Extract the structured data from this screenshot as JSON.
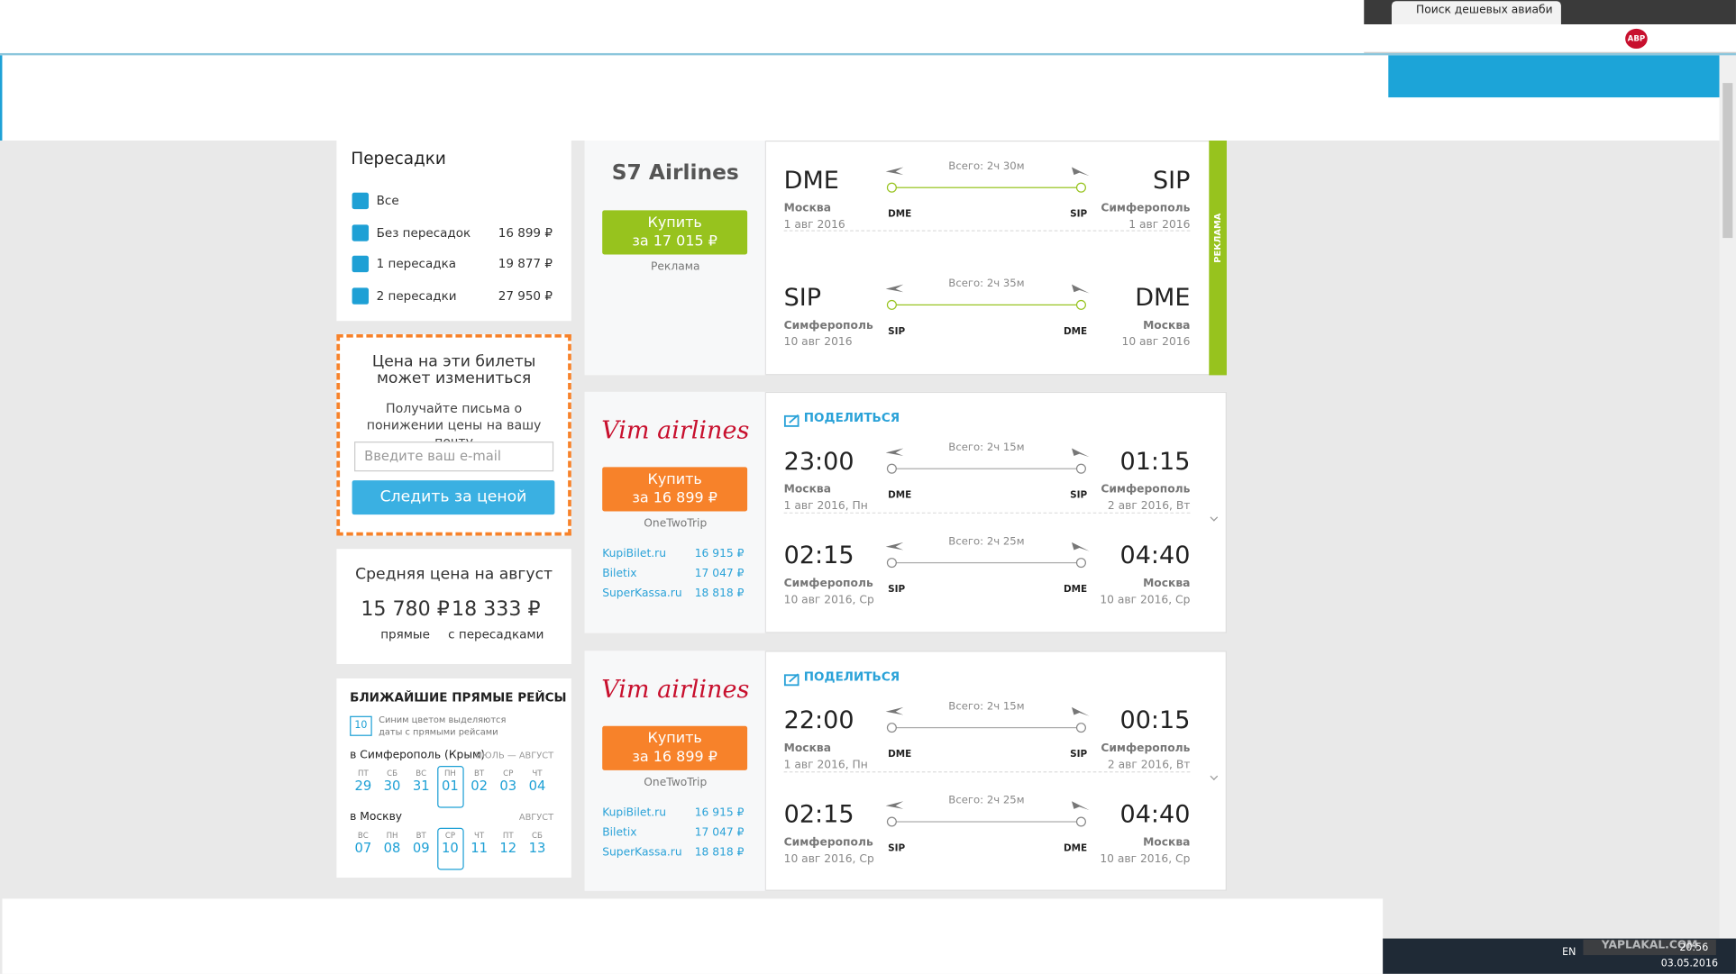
{
  "browser": {
    "tab_title": "Поиск дешевых авиаби",
    "lang": "EN",
    "time": "20:56",
    "date": "03.05.2016",
    "watermark": "YAPLAKAL.COM",
    "badge": "ABP"
  },
  "filters": {
    "title": "Пересадки",
    "options": [
      {
        "label": "Все"
      },
      {
        "label": "Без пересадок",
        "price": "16 899 ₽"
      },
      {
        "label": "1 пересадка",
        "price": "19 877 ₽"
      },
      {
        "label": "2 пересадки",
        "price": "27 950 ₽"
      }
    ]
  },
  "alert": {
    "title": "Цена на эти билеты может измениться",
    "text": "Получайте письма о понижении цены на вашу почту",
    "placeholder": "Введите ваш e-mail",
    "button": "Следить за ценой"
  },
  "average": {
    "title": "Средняя цена на август",
    "items": [
      {
        "price": "15 780 ₽",
        "label": "прямые"
      },
      {
        "price": "18 333 ₽",
        "label": "с пересадками"
      }
    ]
  },
  "nearest": {
    "title": "БЛИЖАЙШИЕ ПРЯМЫЕ РЕЙСЫ",
    "legend_day": "10",
    "legend": "Синим цветом выделяются даты с прямыми рейсами",
    "routes": [
      {
        "label": "в Симферополь (Крым)",
        "months": "ИЮЛЬ — АВГУСТ",
        "selected": 3,
        "days": [
          {
            "wd": "ПТ",
            "d": "29"
          },
          {
            "wd": "СБ",
            "d": "30"
          },
          {
            "wd": "ВС",
            "d": "31"
          },
          {
            "wd": "ПН",
            "d": "01"
          },
          {
            "wd": "ВТ",
            "d": "02"
          },
          {
            "wd": "СР",
            "d": "03"
          },
          {
            "wd": "ЧТ",
            "d": "04"
          }
        ]
      },
      {
        "label": "в Москву",
        "months": "АВГУСТ",
        "selected": 3,
        "days": [
          {
            "wd": "ВС",
            "d": "07"
          },
          {
            "wd": "ПН",
            "d": "08"
          },
          {
            "wd": "ВТ",
            "d": "09"
          },
          {
            "wd": "СР",
            "d": "10"
          },
          {
            "wd": "ЧТ",
            "d": "11"
          },
          {
            "wd": "ПТ",
            "d": "12"
          },
          {
            "wd": "СБ",
            "d": "13"
          }
        ]
      }
    ]
  },
  "tickets": [
    {
      "logo": "S7 Airlines",
      "button_label": "Купить",
      "button_price": "за 17 015 ₽",
      "button_color": "#97c31e",
      "agency": "Реклама",
      "ad_tag": "РЕКЛАМА",
      "legs": [
        {
          "from_main": "DME",
          "from_city": "Москва",
          "from_date": "1 авг 2016",
          "duration": "Всего: 2ч 30м",
          "dep_code": "DME",
          "arr_code": "SIP",
          "to_main": "SIP",
          "to_city": "Симферополь",
          "to_date": "1 авг 2016"
        },
        {
          "from_main": "SIP",
          "from_city": "Симферополь",
          "from_date": "10 авг 2016",
          "duration": "Всего: 2ч 35м",
          "dep_code": "SIP",
          "arr_code": "DME",
          "to_main": "DME",
          "to_city": "Москва",
          "to_date": "10 авг 2016"
        }
      ]
    },
    {
      "logo": "Vim airlines",
      "share": "ПОДЕЛИТЬСЯ",
      "button_label": "Купить",
      "button_price": "за 16 899 ₽",
      "button_color": "#f7822a",
      "agency": "OneTwoTrip",
      "offers": [
        {
          "name": "KupiBilet.ru",
          "price": "16 915 ₽"
        },
        {
          "name": "Biletix",
          "price": "17 047 ₽"
        },
        {
          "name": "SuperKassa.ru",
          "price": "18 818 ₽"
        }
      ],
      "legs": [
        {
          "from_main": "23:00",
          "from_city": "Москва",
          "from_date": "1 авг 2016, Пн",
          "duration": "Всего: 2ч 15м",
          "dep_code": "DME",
          "arr_code": "SIP",
          "to_main": "01:15",
          "to_city": "Симферополь",
          "to_date": "2 авг 2016, Вт"
        },
        {
          "from_main": "02:15",
          "from_city": "Симферополь",
          "from_date": "10 авг 2016, Ср",
          "duration": "Всего: 2ч 25м",
          "dep_code": "SIP",
          "arr_code": "DME",
          "to_main": "04:40",
          "to_city": "Москва",
          "to_date": "10 авг 2016, Ср"
        }
      ]
    },
    {
      "logo": "Vim airlines",
      "share": "ПОДЕЛИТЬСЯ",
      "button_label": "Купить",
      "button_price": "за 16 899 ₽",
      "button_color": "#f7822a",
      "agency": "OneTwoTrip",
      "offers": [
        {
          "name": "KupiBilet.ru",
          "price": "16 915 ₽"
        },
        {
          "name": "Biletix",
          "price": "17 047 ₽"
        },
        {
          "name": "SuperKassa.ru",
          "price": "18 818 ₽"
        }
      ],
      "legs": [
        {
          "from_main": "22:00",
          "from_city": "Москва",
          "from_date": "1 авг 2016, Пн",
          "duration": "Всего: 2ч 15м",
          "dep_code": "DME",
          "arr_code": "SIP",
          "to_main": "00:15",
          "to_city": "Симферополь",
          "to_date": "2 авг 2016, Вт"
        },
        {
          "from_main": "02:15",
          "from_city": "Симферополь",
          "from_date": "10 авг 2016, Ср",
          "duration": "Всего: 2ч 25м",
          "dep_code": "SIP",
          "arr_code": "DME",
          "to_main": "04:40",
          "to_city": "Москва",
          "to_date": "10 авг 2016, Ср"
        }
      ]
    }
  ]
}
